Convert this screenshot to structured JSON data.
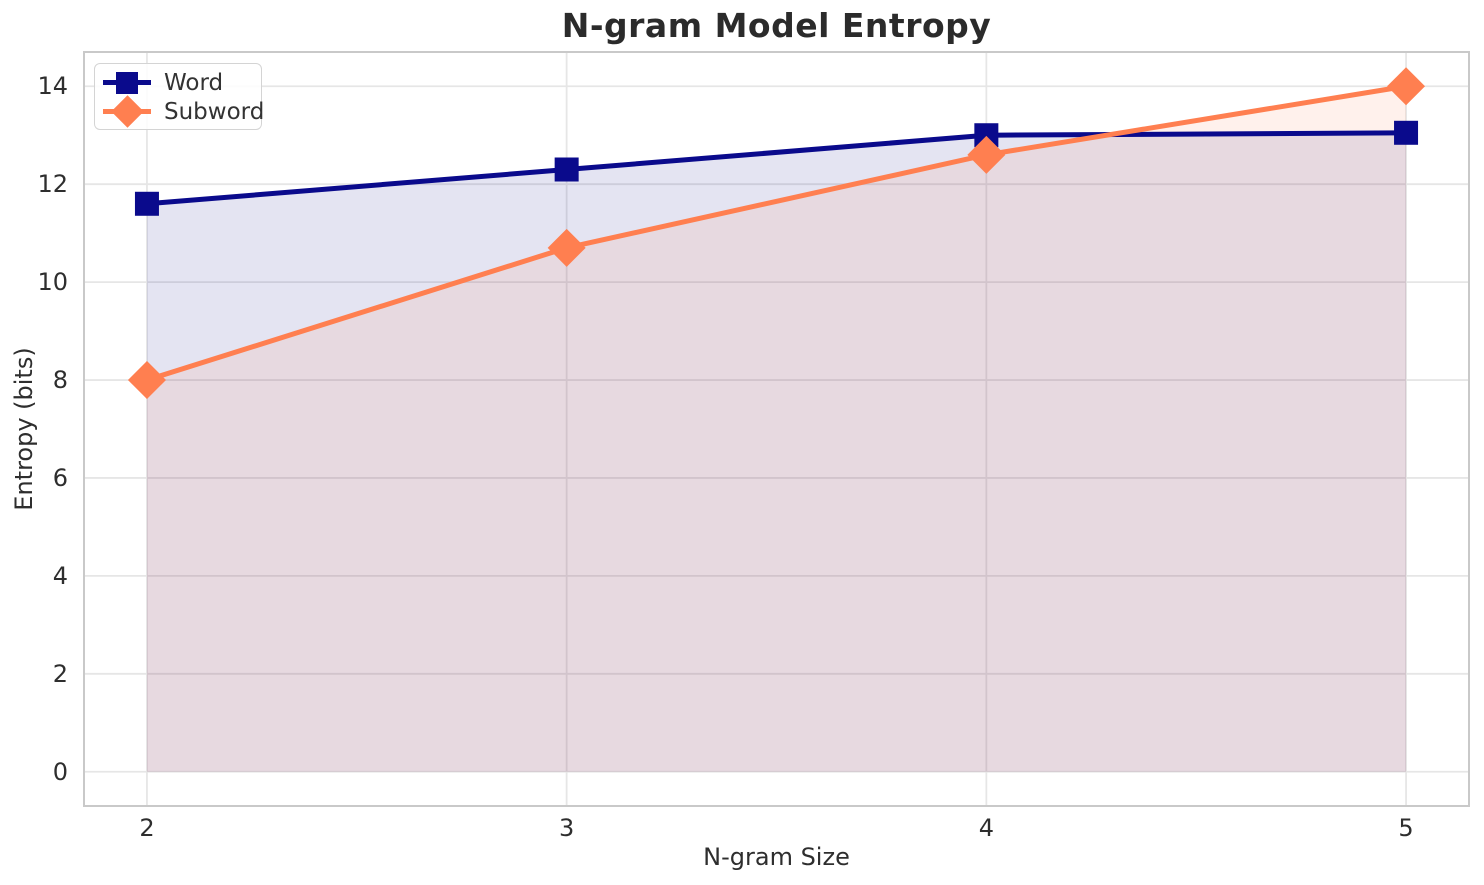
{
  "chart_data": {
    "type": "line",
    "title": "N-gram Model Entropy",
    "xlabel": "N-gram Size",
    "ylabel": "Entropy (bits)",
    "x": [
      2,
      3,
      4,
      5
    ],
    "series": [
      {
        "name": "Word",
        "values": [
          11.6,
          12.3,
          13.0,
          13.05
        ],
        "color": "#0a0a8c",
        "marker": "square",
        "fill_to_zero": true
      },
      {
        "name": "Subword",
        "values": [
          8.0,
          10.7,
          12.6,
          14.0
        ],
        "color": "#ff7f50",
        "marker": "diamond",
        "fill_to_zero": true
      }
    ],
    "xlim": [
      1.85,
      5.15
    ],
    "ylim": [
      -0.7,
      14.7
    ],
    "xticks": [
      "2",
      "3",
      "4",
      "5"
    ],
    "xtick_values": [
      2,
      3,
      4,
      5
    ],
    "yticks": [
      "0",
      "2",
      "4",
      "6",
      "8",
      "10",
      "12",
      "14"
    ],
    "ytick_values": [
      0,
      2,
      4,
      6,
      8,
      10,
      12,
      14
    ],
    "grid": true,
    "legend_position": "upper left",
    "fill_alpha": 0.11,
    "line_width": 5
  },
  "colors": {
    "background": "#ffffff",
    "grid": "#e6e6e6",
    "spine": "#c9c9c9",
    "tick_text": "#2e2e2e",
    "title_text": "#2b2b2b",
    "word_line": "#0a0a8c",
    "subword_line": "#ff7f50"
  }
}
